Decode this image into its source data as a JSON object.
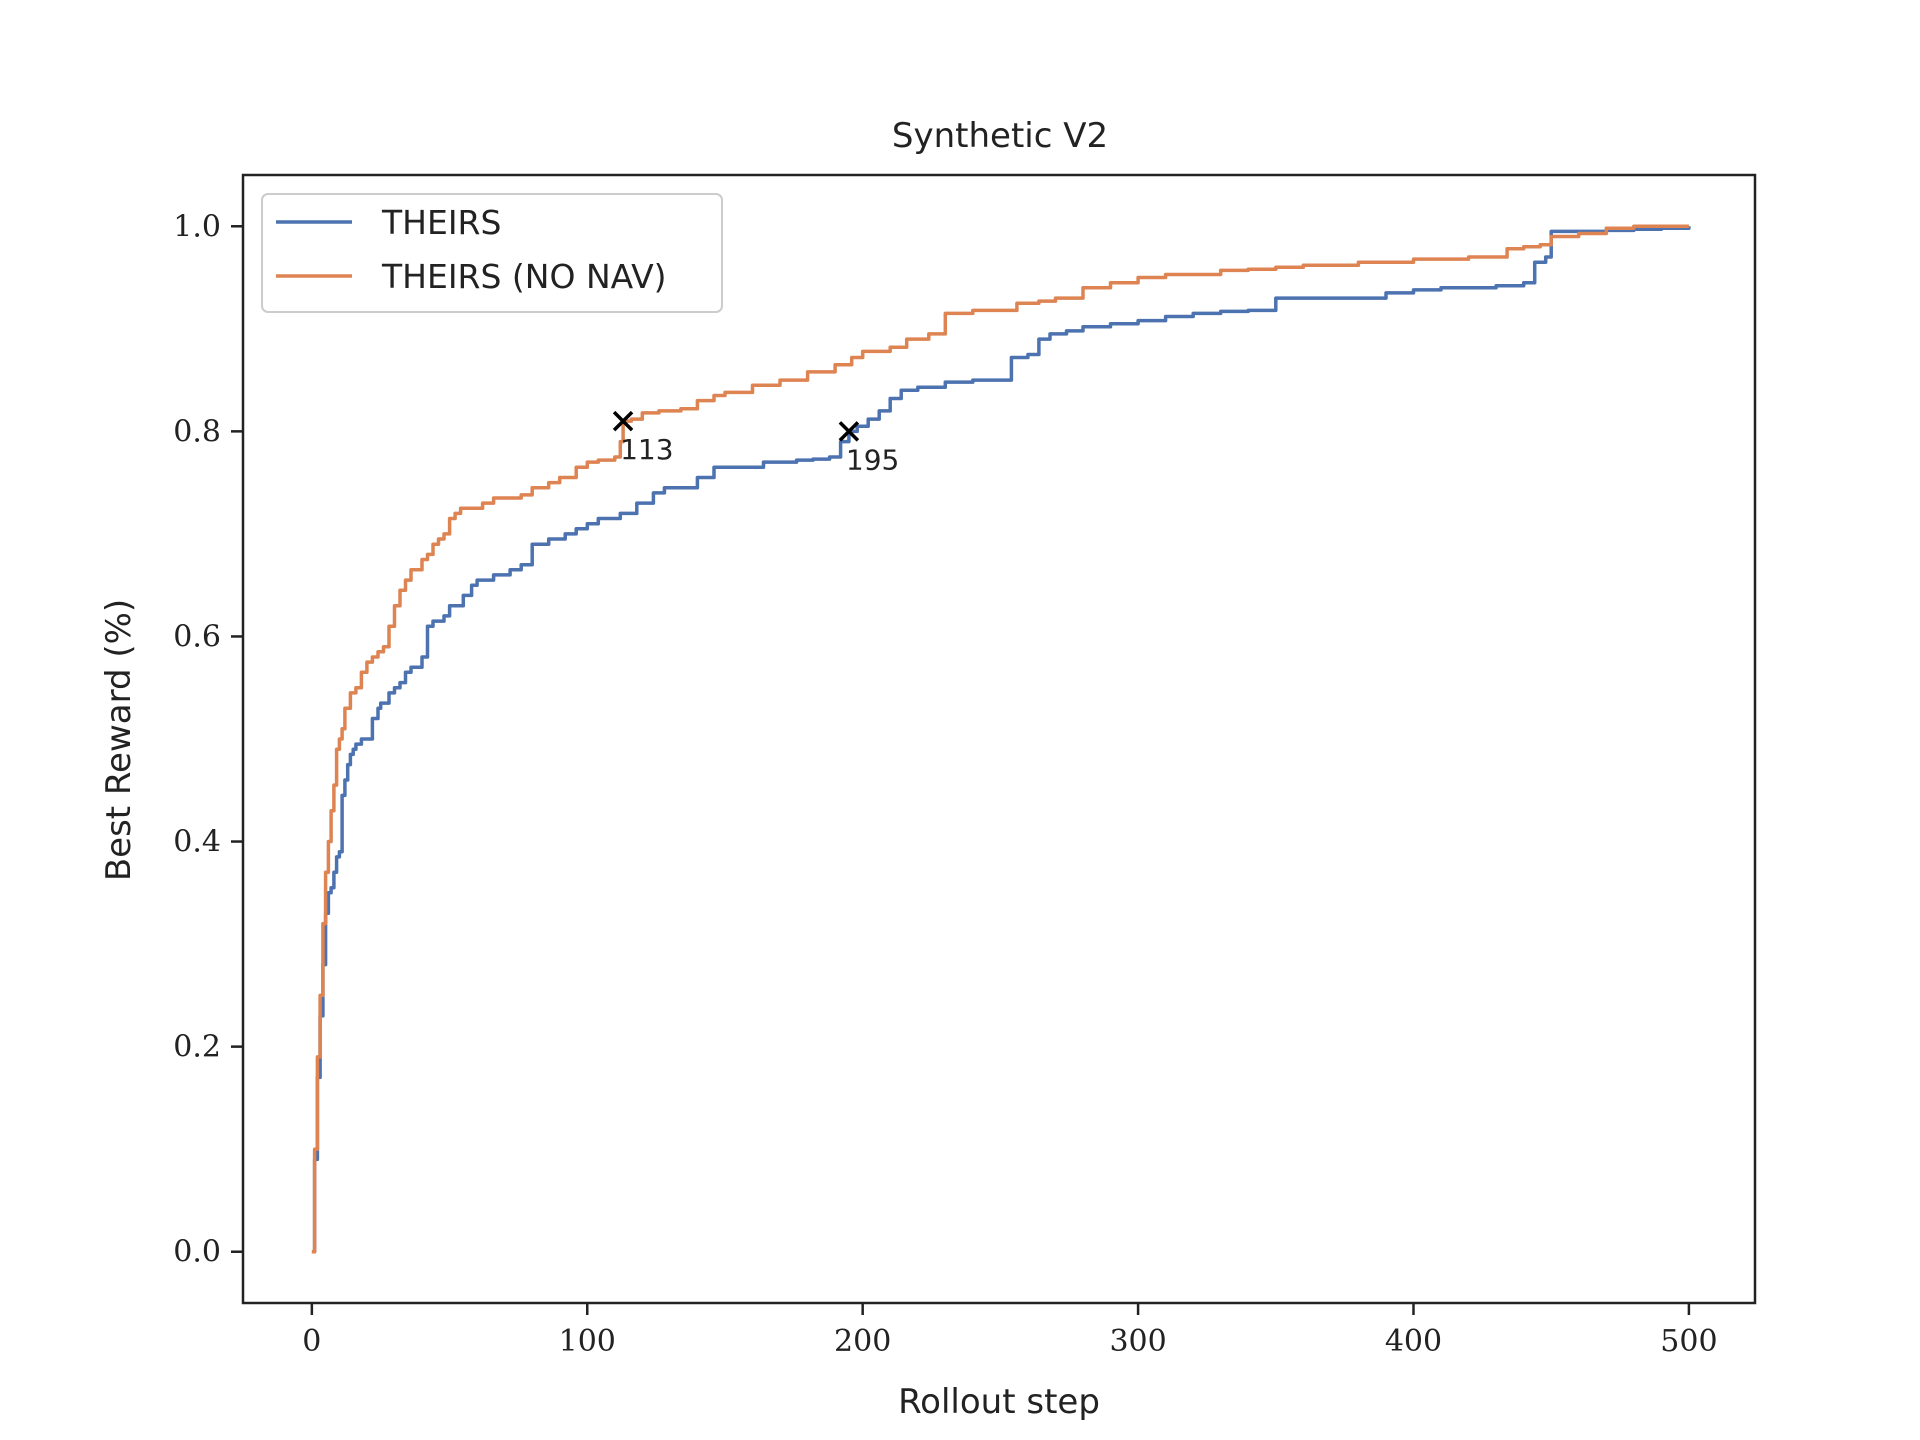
{
  "chart_data": {
    "type": "line",
    "title": "Synthetic V2",
    "xlabel": "Rollout step",
    "ylabel": "Best Reward (%)",
    "xlim": [
      -25,
      524
    ],
    "ylim": [
      -0.05,
      1.05
    ],
    "xticks": [
      0,
      100,
      200,
      300,
      400,
      500
    ],
    "yticks": [
      0.0,
      0.2,
      0.4,
      0.6,
      0.8,
      1.0
    ],
    "xtick_labels": [
      "0",
      "100",
      "200",
      "300",
      "400",
      "500"
    ],
    "ytick_labels": [
      "0.0",
      "0.2",
      "0.4",
      "0.6",
      "0.8",
      "1.0"
    ],
    "grid": false,
    "legend_position": "top-left",
    "series": [
      {
        "name": "THEIRS",
        "color": "#4c72b0",
        "x": [
          0,
          1,
          2,
          3,
          4,
          5,
          6,
          7,
          8,
          9,
          10,
          11,
          12,
          13,
          14,
          15,
          16,
          18,
          20,
          22,
          24,
          25,
          28,
          30,
          32,
          34,
          36,
          40,
          42,
          44,
          46,
          48,
          50,
          55,
          58,
          60,
          62,
          66,
          68,
          72,
          76,
          80,
          86,
          88,
          92,
          96,
          100,
          104,
          106,
          112,
          118,
          124,
          128,
          134,
          140,
          146,
          150,
          158,
          164,
          170,
          176,
          182,
          188,
          192,
          195,
          198,
          202,
          206,
          210,
          214,
          220,
          230,
          240,
          250,
          254,
          260,
          264,
          268,
          274,
          280,
          290,
          300,
          310,
          320,
          330,
          340,
          350,
          360,
          380,
          390,
          400,
          410,
          418,
          430,
          440,
          444,
          448,
          450,
          460,
          470,
          480,
          490,
          500
        ],
        "y": [
          0.0,
          0.09,
          0.17,
          0.23,
          0.28,
          0.33,
          0.35,
          0.355,
          0.37,
          0.385,
          0.39,
          0.445,
          0.46,
          0.475,
          0.485,
          0.49,
          0.495,
          0.5,
          0.5,
          0.52,
          0.53,
          0.535,
          0.545,
          0.55,
          0.555,
          0.565,
          0.57,
          0.58,
          0.61,
          0.615,
          0.615,
          0.62,
          0.63,
          0.64,
          0.65,
          0.655,
          0.655,
          0.66,
          0.66,
          0.665,
          0.67,
          0.69,
          0.695,
          0.695,
          0.7,
          0.705,
          0.71,
          0.715,
          0.715,
          0.72,
          0.73,
          0.74,
          0.745,
          0.745,
          0.755,
          0.765,
          0.765,
          0.765,
          0.77,
          0.77,
          0.772,
          0.773,
          0.775,
          0.79,
          0.8,
          0.805,
          0.812,
          0.82,
          0.832,
          0.84,
          0.843,
          0.848,
          0.85,
          0.85,
          0.872,
          0.875,
          0.89,
          0.895,
          0.898,
          0.902,
          0.905,
          0.908,
          0.912,
          0.915,
          0.917,
          0.918,
          0.93,
          0.93,
          0.93,
          0.935,
          0.938,
          0.94,
          0.94,
          0.942,
          0.945,
          0.965,
          0.97,
          0.995,
          0.995,
          0.996,
          0.997,
          0.998,
          1.0
        ]
      },
      {
        "name": "THEIRS (NO NAV)",
        "color": "#dd8452",
        "x": [
          0,
          1,
          2,
          3,
          4,
          5,
          6,
          7,
          8,
          9,
          10,
          11,
          12,
          14,
          16,
          18,
          20,
          22,
          24,
          26,
          28,
          30,
          32,
          34,
          36,
          38,
          40,
          42,
          44,
          46,
          48,
          50,
          52,
          54,
          58,
          62,
          66,
          70,
          76,
          80,
          86,
          90,
          96,
          100,
          104,
          110,
          112,
          113,
          116,
          120,
          126,
          134,
          140,
          146,
          150,
          160,
          170,
          180,
          190,
          196,
          200,
          210,
          216,
          224,
          230,
          240,
          256,
          264,
          270,
          280,
          290,
          300,
          310,
          330,
          340,
          350,
          360,
          380,
          400,
          420,
          434,
          440,
          446,
          450,
          460,
          470,
          480,
          490,
          500
        ],
        "y": [
          0.0,
          0.1,
          0.19,
          0.25,
          0.32,
          0.37,
          0.4,
          0.43,
          0.455,
          0.49,
          0.5,
          0.51,
          0.53,
          0.545,
          0.55,
          0.565,
          0.575,
          0.58,
          0.585,
          0.59,
          0.61,
          0.63,
          0.645,
          0.655,
          0.665,
          0.665,
          0.675,
          0.68,
          0.69,
          0.695,
          0.7,
          0.715,
          0.72,
          0.725,
          0.725,
          0.73,
          0.735,
          0.735,
          0.738,
          0.745,
          0.75,
          0.755,
          0.765,
          0.77,
          0.772,
          0.775,
          0.79,
          0.81,
          0.812,
          0.818,
          0.82,
          0.822,
          0.83,
          0.835,
          0.838,
          0.845,
          0.85,
          0.858,
          0.865,
          0.872,
          0.878,
          0.882,
          0.89,
          0.895,
          0.915,
          0.918,
          0.925,
          0.927,
          0.93,
          0.94,
          0.945,
          0.95,
          0.953,
          0.957,
          0.958,
          0.96,
          0.962,
          0.965,
          0.968,
          0.97,
          0.978,
          0.98,
          0.982,
          0.99,
          0.993,
          0.998,
          1.0,
          1.0,
          1.0
        ]
      }
    ],
    "annotations": [
      {
        "x": 113,
        "y": 0.81,
        "text": "113",
        "marker": "x"
      },
      {
        "x": 195,
        "y": 0.8,
        "text": "195",
        "marker": "x"
      }
    ]
  }
}
